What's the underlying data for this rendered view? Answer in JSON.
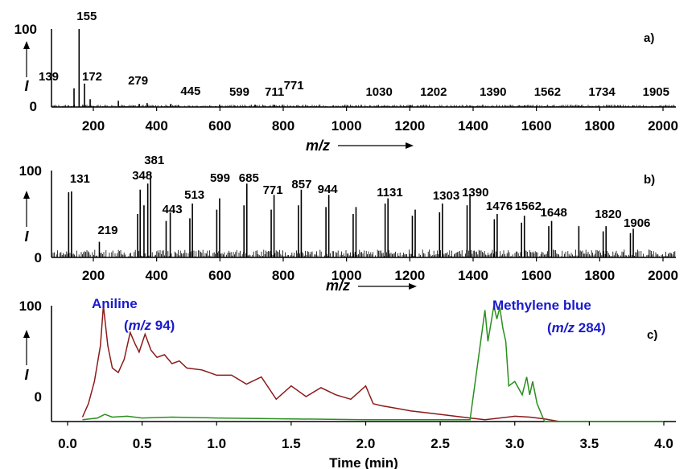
{
  "chart_data": [
    {
      "type": "bar",
      "panel_label": "a)",
      "xlabel": "m/z",
      "ylabel": "I",
      "xlim": [
        60,
        2000
      ],
      "ylim": [
        0,
        100
      ],
      "x_ticks": [
        "200",
        "400",
        "600",
        "800",
        "1000",
        "1200",
        "1400",
        "1600",
        "1800",
        "2000"
      ],
      "y_ticks": [
        "100",
        "0"
      ],
      "peak_labels": [
        "139",
        "155",
        "172",
        "279",
        "445",
        "599",
        "711",
        "771",
        "1030",
        "1202",
        "1390",
        "1562",
        "1734",
        "1905"
      ],
      "peaks": [
        {
          "x": 139,
          "y": 24
        },
        {
          "x": 155,
          "y": 100
        },
        {
          "x": 172,
          "y": 30
        },
        {
          "x": 190,
          "y": 10
        },
        {
          "x": 279,
          "y": 8
        },
        {
          "x": 345,
          "y": 4
        },
        {
          "x": 370,
          "y": 5
        },
        {
          "x": 445,
          "y": 4
        },
        {
          "x": 599,
          "y": 3
        },
        {
          "x": 711,
          "y": 3
        },
        {
          "x": 771,
          "y": 3
        },
        {
          "x": 1030,
          "y": 2
        },
        {
          "x": 1202,
          "y": 2
        },
        {
          "x": 1390,
          "y": 2
        },
        {
          "x": 1562,
          "y": 2
        },
        {
          "x": 1734,
          "y": 2
        },
        {
          "x": 1905,
          "y": 2
        }
      ]
    },
    {
      "type": "bar",
      "panel_label": "b)",
      "xlabel": "m/z",
      "ylabel": "I",
      "xlim": [
        60,
        2000
      ],
      "ylim": [
        0,
        100
      ],
      "x_ticks": [
        "200",
        "400",
        "600",
        "800",
        "1000",
        "1200",
        "1400",
        "1600",
        "1800",
        "2000"
      ],
      "y_ticks": [
        "100",
        "0"
      ],
      "peak_labels": [
        "131",
        "219",
        "348",
        "381",
        "443",
        "513",
        "599",
        "685",
        "771",
        "857",
        "944",
        "1131",
        "1303",
        "1390",
        "1476",
        "1562",
        "1648",
        "1820",
        "1906"
      ],
      "peaks": [
        {
          "x": 122,
          "y": 75
        },
        {
          "x": 131,
          "y": 76
        },
        {
          "x": 219,
          "y": 18
        },
        {
          "x": 340,
          "y": 50
        },
        {
          "x": 348,
          "y": 78
        },
        {
          "x": 360,
          "y": 60
        },
        {
          "x": 372,
          "y": 85
        },
        {
          "x": 381,
          "y": 96
        },
        {
          "x": 430,
          "y": 42
        },
        {
          "x": 443,
          "y": 52
        },
        {
          "x": 505,
          "y": 45
        },
        {
          "x": 513,
          "y": 62
        },
        {
          "x": 590,
          "y": 55
        },
        {
          "x": 599,
          "y": 68
        },
        {
          "x": 676,
          "y": 60
        },
        {
          "x": 685,
          "y": 85
        },
        {
          "x": 762,
          "y": 55
        },
        {
          "x": 771,
          "y": 72
        },
        {
          "x": 848,
          "y": 60
        },
        {
          "x": 857,
          "y": 78
        },
        {
          "x": 935,
          "y": 58
        },
        {
          "x": 944,
          "y": 72
        },
        {
          "x": 1021,
          "y": 50
        },
        {
          "x": 1030,
          "y": 58
        },
        {
          "x": 1122,
          "y": 62
        },
        {
          "x": 1131,
          "y": 68
        },
        {
          "x": 1208,
          "y": 48
        },
        {
          "x": 1217,
          "y": 55
        },
        {
          "x": 1294,
          "y": 52
        },
        {
          "x": 1303,
          "y": 62
        },
        {
          "x": 1381,
          "y": 60
        },
        {
          "x": 1390,
          "y": 72
        },
        {
          "x": 1467,
          "y": 44
        },
        {
          "x": 1476,
          "y": 50
        },
        {
          "x": 1553,
          "y": 40
        },
        {
          "x": 1562,
          "y": 48
        },
        {
          "x": 1639,
          "y": 36
        },
        {
          "x": 1648,
          "y": 42
        },
        {
          "x": 1734,
          "y": 36
        },
        {
          "x": 1811,
          "y": 30
        },
        {
          "x": 1820,
          "y": 36
        },
        {
          "x": 1897,
          "y": 28
        },
        {
          "x": 1906,
          "y": 33
        }
      ]
    },
    {
      "type": "line",
      "panel_label": "c)",
      "xlabel": "Time (min)",
      "ylabel": "I",
      "xlim": [
        0,
        4.0
      ],
      "ylim": [
        -30,
        100
      ],
      "x_ticks": [
        "0.0",
        "0.5",
        "1.0",
        "1.5",
        "2.0",
        "2.5",
        "3.0",
        "3.5",
        "4.0"
      ],
      "y_ticks": [
        "100",
        "0"
      ],
      "annotations": [
        {
          "name": "Aniline",
          "sub": "m/z",
          "subval": " 94",
          "color": "#1a1acc"
        },
        {
          "name": "Methylene blue",
          "sub": "m/z",
          "subval": " 284",
          "color": "#1a1acc"
        }
      ],
      "series": [
        {
          "color": "#8b1a1a",
          "x": [
            0.1,
            0.14,
            0.18,
            0.22,
            0.24,
            0.27,
            0.3,
            0.34,
            0.38,
            0.42,
            0.45,
            0.48,
            0.52,
            0.56,
            0.6,
            0.65,
            0.7,
            0.75,
            0.8,
            0.9,
            1.0,
            1.1,
            1.2,
            1.3,
            1.4,
            1.5,
            1.6,
            1.7,
            1.8,
            1.9,
            2.0,
            2.05,
            2.1,
            2.2,
            2.3,
            2.4,
            2.5,
            2.6,
            2.7,
            2.8,
            2.9,
            3.0,
            3.1,
            3.2,
            3.3
          ],
          "y": [
            -25,
            -10,
            15,
            55,
            100,
            55,
            30,
            25,
            40,
            70,
            58,
            48,
            68,
            50,
            42,
            45,
            35,
            38,
            30,
            28,
            22,
            22,
            12,
            20,
            -5,
            10,
            -2,
            8,
            0,
            -5,
            10,
            -10,
            -12,
            -15,
            -18,
            -20,
            -22,
            -24,
            -26,
            -28,
            -26,
            -24,
            -25,
            -27,
            -30
          ]
        },
        {
          "color": "#2a8f1e",
          "x": [
            0.1,
            0.2,
            0.25,
            0.3,
            0.4,
            0.5,
            0.7,
            1.0,
            1.5,
            2.0,
            2.5,
            2.7,
            2.8,
            2.82,
            2.84,
            2.86,
            2.88,
            2.9,
            2.92,
            2.94,
            2.96,
            3.0,
            3.05,
            3.08,
            3.1,
            3.12,
            3.15,
            3.2,
            3.3,
            4.0
          ],
          "y": [
            -28,
            -26,
            -22,
            -25,
            -24,
            -26,
            -25,
            -26,
            -27,
            -28,
            -28,
            -28,
            95,
            60,
            80,
            100,
            85,
            98,
            75,
            60,
            10,
            15,
            0,
            20,
            0,
            15,
            -10,
            -30,
            -30,
            -30
          ]
        }
      ]
    }
  ]
}
